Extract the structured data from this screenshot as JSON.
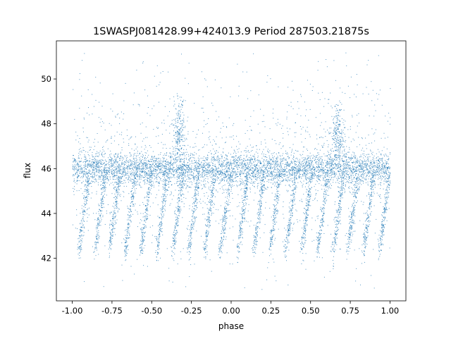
{
  "chart_data": {
    "type": "scatter",
    "title": "1SWASPJ081428.99+424013.9 Period 287503.21875s",
    "xlabel": "phase",
    "ylabel": "flux",
    "xlim": [
      -1.1,
      1.1
    ],
    "ylim": [
      40.1,
      51.7
    ],
    "xticks": [
      "-1.00",
      "-0.75",
      "-0.50",
      "-0.25",
      "0.00",
      "0.25",
      "0.50",
      "0.75",
      "1.00"
    ],
    "xtick_values": [
      -1,
      -0.75,
      -0.5,
      -0.25,
      0,
      0.25,
      0.5,
      0.75,
      1
    ],
    "yticks": [
      "42",
      "44",
      "46",
      "48",
      "50"
    ],
    "ytick_values": [
      42,
      44,
      46,
      48,
      50
    ],
    "grid": false,
    "marker_color": "#1f77b4",
    "series": [
      {
        "phase_range": [
          -1.0,
          1.0
        ],
        "baseline_flux": 46.0,
        "flux_min": 40.6,
        "flux_max": 51.2,
        "dip_phases": [
          -0.96,
          -0.86,
          -0.77,
          -0.67,
          -0.57,
          -0.47,
          -0.37,
          -0.27,
          -0.17,
          -0.07,
          0.04,
          0.14,
          0.24,
          0.34,
          0.44,
          0.54,
          0.64,
          0.73,
          0.83,
          0.93
        ],
        "dip_min_flux": 42.3,
        "brightening_phases": [
          -0.33,
          0.67
        ],
        "brightening_flux": 47.5
      }
    ]
  }
}
